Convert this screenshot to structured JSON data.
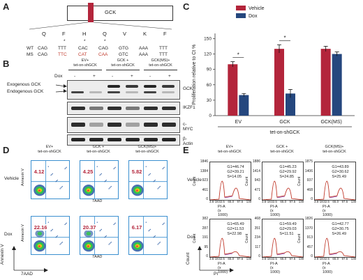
{
  "panels": {
    "a": "A",
    "b": "B",
    "c": "C",
    "d": "D",
    "e": "E"
  },
  "panel_a": {
    "gene": "GCK",
    "aa": [
      "Q",
      "F",
      "H",
      "Q",
      "V",
      "K",
      "F"
    ],
    "wt_label": "WT",
    "ms_label": "MS",
    "wt_codons": [
      "CAG",
      "TTT",
      "CAC",
      "CAG",
      "GTG",
      "AAA",
      "TTT"
    ],
    "ms_codons": [
      "CAG",
      "TTC",
      "CAT",
      "CAA",
      "GTC",
      "AAA",
      "TTT"
    ],
    "ms_changed": [
      false,
      true,
      true,
      true,
      false,
      false,
      false
    ],
    "stars": [
      "*",
      "*",
      "*",
      "*"
    ]
  },
  "panel_b": {
    "groups": [
      "EV+\ntet-on-shGCK",
      "GCK +\ntet-on-shGCK",
      "GCK(MS)+\ntet-on-shGCK"
    ],
    "dox_label": "Dox",
    "dox_signs": [
      "-",
      "+",
      "-",
      "+",
      "-",
      "+"
    ],
    "rows": [
      "GCK",
      "IKZF1",
      "c-MYC",
      "β-Actin"
    ],
    "exo_label": "Exogenous GCK",
    "endo_label": "Endogenous GCK"
  },
  "chart_data": {
    "type": "bar",
    "categories": [
      "EV",
      "GCK",
      "GCK(MS)"
    ],
    "series": [
      {
        "name": "Vehicle",
        "values": [
          100,
          130,
          130
        ],
        "err": [
          5,
          8,
          5
        ],
        "color": "#b3253b"
      },
      {
        "name": "Dox",
        "values": [
          40,
          43,
          120
        ],
        "err": [
          3,
          8,
          4
        ],
        "color": "#25477e"
      }
    ],
    "ylabel": "Proliferation relative to Ct %",
    "xlabel": "tet-on-shGCK",
    "ylim": [
      0,
      160
    ],
    "yticks": [
      0,
      30,
      60,
      90,
      120,
      150
    ],
    "significance": [
      "*",
      "*"
    ],
    "legend_position": "top"
  },
  "panel_d": {
    "groups": [
      "EV+\ntet-on-shGCK",
      "GCK +\ntet-on-shGCK",
      "GCK(MS)+\ntet-on-shGCK"
    ],
    "row_labels": [
      "Vehicle",
      "Dox"
    ],
    "apoptosis": [
      [
        "4.12",
        "4.25",
        "5.82"
      ],
      [
        "22.16",
        "20.37",
        "6.17"
      ]
    ],
    "xlabel": "7AAD",
    "ylabel": "Annexin V"
  },
  "panel_e": {
    "groups": [
      "EV+\ntet-on-shGCK",
      "GCK +\ntet-on-shGCK",
      "GCK(MS)+\ntet-on-shGCK"
    ],
    "row_labels": [
      "Vehicle",
      "Dox"
    ],
    "stats": [
      [
        [
          "G1=46.74",
          "G2=39.21",
          "S=14.05"
        ],
        [
          "G1=45.23",
          "G2=29.92",
          "S=24.85"
        ],
        [
          "G1=43.89",
          "G2=30.62",
          "S=25.49"
        ]
      ],
      [
        [
          "G1=65.49",
          "G2=11.53",
          "S=22.98"
        ],
        [
          "G1=59.49",
          "G2=29.03",
          "S=11.51"
        ],
        [
          "G1=42.77",
          "G2=30.75",
          "S=26.49"
        ]
      ]
    ],
    "yticks": [
      [
        [
          "1846",
          "1384",
          "923",
          "461",
          "0"
        ],
        [
          "1886",
          "1414",
          "943",
          "471",
          "0"
        ],
        [
          "1875",
          "1406",
          "937",
          "468",
          "0"
        ]
      ],
      [
        [
          "382",
          "287",
          "191",
          "95",
          "0"
        ],
        [
          "468",
          "351",
          "234",
          "117",
          "0"
        ],
        [
          "1826",
          "1370",
          "913",
          "457",
          "0"
        ]
      ]
    ],
    "xticks": [
      "3.6-18",
      "32.5",
      "65.0",
      "97.5",
      "130"
    ],
    "xlabel": "PI-A (x 1000)",
    "ylabel": "Count",
    "axis_x": "PI",
    "axis_y": "Count"
  }
}
